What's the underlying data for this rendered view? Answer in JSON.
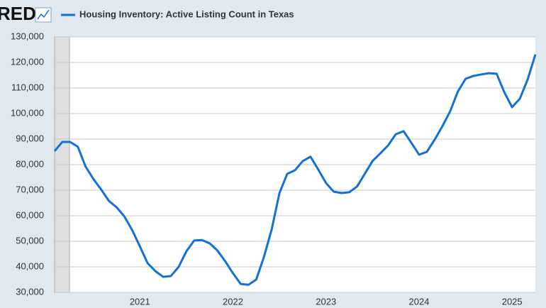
{
  "logo": "RED",
  "chart_data": {
    "type": "line",
    "series": [
      {
        "name": "Housing Inventory: Active Listing Count in Texas",
        "color": "#1271d6",
        "values": [
          85300,
          88900,
          88900,
          87000,
          79200,
          74400,
          70300,
          65800,
          63300,
          59700,
          54400,
          48000,
          41400,
          38300,
          36100,
          36400,
          40000,
          46100,
          50300,
          50500,
          49200,
          46400,
          42200,
          37500,
          33300,
          33000,
          35000,
          43900,
          54700,
          68900,
          76400,
          77800,
          81400,
          83100,
          78100,
          72800,
          69400,
          68900,
          69200,
          71400,
          76400,
          81400,
          84400,
          87500,
          91900,
          93100,
          88600,
          83900,
          85000,
          89700,
          95000,
          100800,
          108600,
          113600,
          114700,
          115300,
          115800,
          115600,
          108300,
          102500,
          105800,
          113300,
          123100
        ]
      }
    ],
    "categories": [
      null,
      null,
      null,
      null,
      null,
      null,
      null,
      null,
      null,
      null,
      null,
      "2021",
      null,
      null,
      null,
      null,
      null,
      null,
      null,
      null,
      null,
      null,
      null,
      "2022",
      null,
      null,
      null,
      null,
      null,
      null,
      null,
      null,
      null,
      null,
      null,
      "2023",
      null,
      null,
      null,
      null,
      null,
      null,
      null,
      null,
      null,
      null,
      null,
      "2024",
      null,
      null,
      null,
      null,
      null,
      null,
      null,
      null,
      null,
      null,
      null,
      "2025",
      null,
      null,
      null
    ],
    "ylim": [
      30000,
      130000
    ],
    "yticks": [
      {
        "value": 30000,
        "label": "30,000"
      },
      {
        "value": 40000,
        "label": "40,000"
      },
      {
        "value": 50000,
        "label": "50,000"
      },
      {
        "value": 60000,
        "label": "60,000"
      },
      {
        "value": 70000,
        "label": "70,000"
      },
      {
        "value": 80000,
        "label": "80,000"
      },
      {
        "value": 90000,
        "label": "90,000"
      },
      {
        "value": 100000,
        "label": "100,000"
      },
      {
        "value": 110000,
        "label": "110,000"
      },
      {
        "value": 120000,
        "label": "120,000"
      },
      {
        "value": 130000,
        "label": "130,000"
      }
    ],
    "grid": true
  }
}
